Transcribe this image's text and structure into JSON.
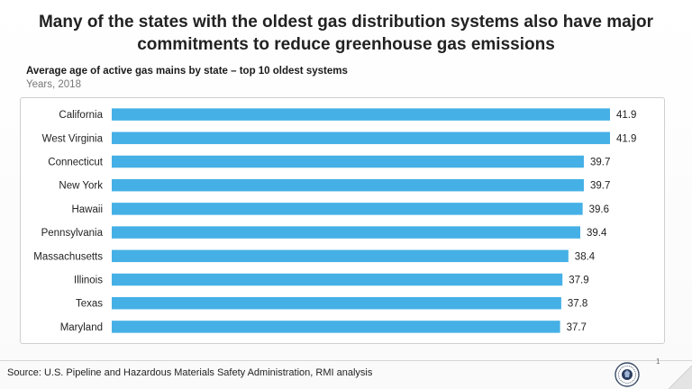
{
  "slide": {
    "title": "Many of the states with the oldest gas distribution systems also have major commitments to reduce greenhouse gas emissions",
    "source": "Source: U.S. Pipeline and Hazardous Materials Safety Administration, RMI analysis",
    "page_number": "1",
    "logo_icon": "circular-seal-icon"
  },
  "chart_data": {
    "type": "bar",
    "orientation": "horizontal",
    "title": "Average age of active gas mains by state – top 10 oldest systems",
    "subtitle": "Years, 2018",
    "categories": [
      "California",
      "West Virginia",
      "Connecticut",
      "New York",
      "Hawaii",
      "Pennsylvania",
      "Massachusetts",
      "Illinois",
      "Texas",
      "Maryland"
    ],
    "values": [
      41.9,
      41.9,
      39.7,
      39.7,
      39.6,
      39.4,
      38.4,
      37.9,
      37.8,
      37.7
    ],
    "data_labels": [
      "41.9",
      "41.9",
      "39.7",
      "39.7",
      "39.6",
      "39.4",
      "38.4",
      "37.9",
      "37.8",
      "37.7"
    ],
    "bar_color": "#45B0E6",
    "xlim": [
      0,
      41.9
    ],
    "grid": false,
    "legend": "none"
  }
}
